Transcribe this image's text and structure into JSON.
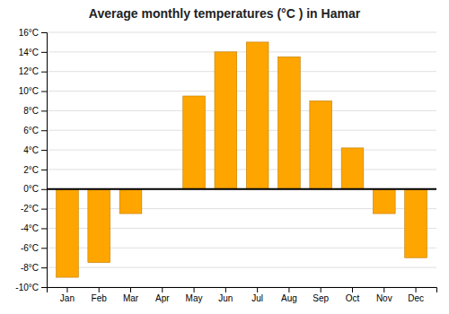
{
  "chart_data": {
    "type": "bar",
    "title": "Average monthly temperatures (°C ) in Hamar",
    "categories": [
      "Jan",
      "Feb",
      "Mar",
      "Apr",
      "May",
      "Jun",
      "Jul",
      "Aug",
      "Sep",
      "Oct",
      "Nov",
      "Dec"
    ],
    "values": [
      -9,
      -7.5,
      -2.5,
      0,
      9.5,
      14,
      15,
      13.5,
      9,
      4.2,
      -2.5,
      -7
    ],
    "color": "#FFA500",
    "ylim": [
      -10,
      16
    ],
    "yticks": [
      {
        "value": -10,
        "label": "-10°C"
      },
      {
        "value": -8,
        "label": "-8°C"
      },
      {
        "value": -6,
        "label": "-6°C"
      },
      {
        "value": -4,
        "label": "-4°C"
      },
      {
        "value": -2,
        "label": "-2°C"
      },
      {
        "value": 0,
        "label": "0°C"
      },
      {
        "value": 2,
        "label": "2°C"
      },
      {
        "value": 4,
        "label": "4°C"
      },
      {
        "value": 6,
        "label": "6°C"
      },
      {
        "value": 8,
        "label": "8°C"
      },
      {
        "value": 10,
        "label": "10°C"
      },
      {
        "value": 12,
        "label": "12°C"
      },
      {
        "value": 14,
        "label": "14°C"
      },
      {
        "value": 16,
        "label": "16°C"
      }
    ],
    "grid": true
  }
}
